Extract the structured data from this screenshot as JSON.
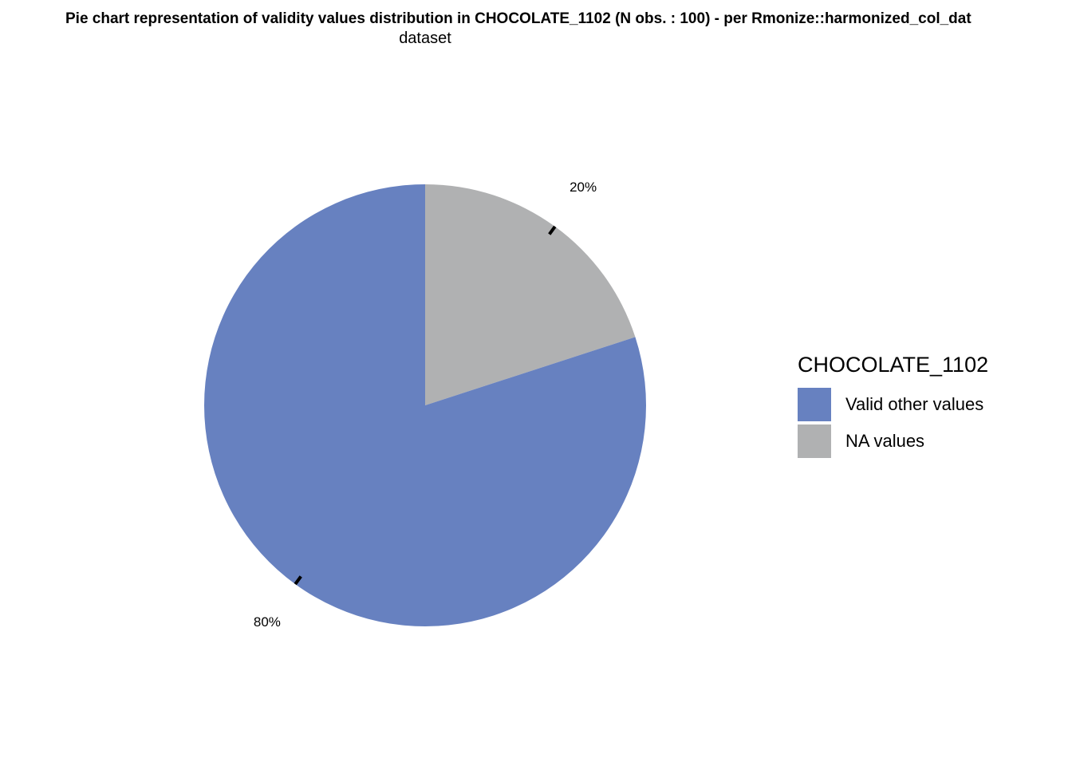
{
  "chart_data": {
    "type": "pie",
    "title": "Pie chart representation of validity values distribution in CHOCOLATE_1102 (N obs. : 100) - per Rmonize::harmonized_col_dat",
    "subtitle": "dataset",
    "categories": [
      "Valid other values",
      "NA values"
    ],
    "values": [
      80,
      20
    ],
    "labels": [
      "80%",
      "20%"
    ],
    "colors": [
      "#6781C0",
      "#B0B1B2"
    ],
    "legend": {
      "title": "CHOCOLATE_1102",
      "position": "right"
    }
  }
}
